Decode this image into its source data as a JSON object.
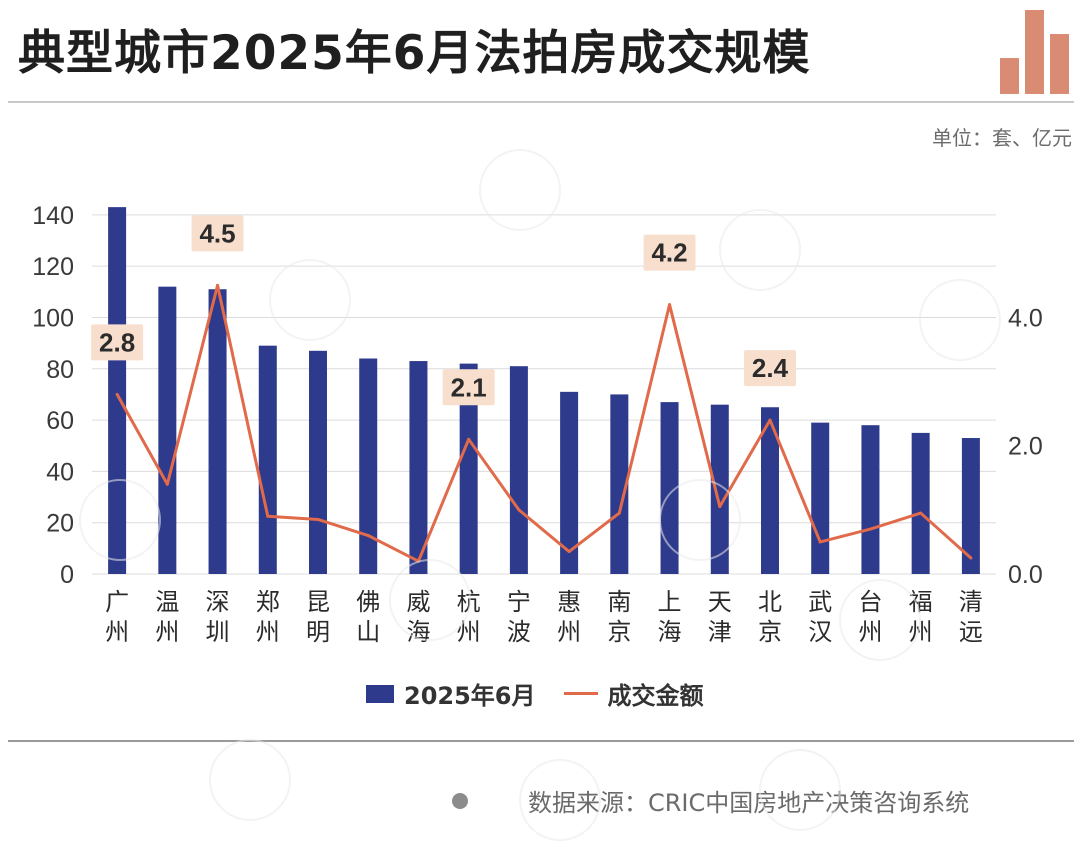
{
  "header": {
    "title": "典型城市2025年6月法拍房成交规模",
    "unit": "单位：套、亿元",
    "logo_icon": "bar-chart-logo-icon"
  },
  "colors": {
    "bar": "#2e3a8c",
    "line": "#e06a4a",
    "label_bg": "#f8dfcd",
    "grid": "#dcdcdc",
    "logo": "#d98b73"
  },
  "chart_data": {
    "type": "bar",
    "title": "典型城市2025年6月法拍房成交规模",
    "categories": [
      "广州",
      "温州",
      "深圳",
      "郑州",
      "昆明",
      "佛山",
      "威海",
      "杭州",
      "宁波",
      "惠州",
      "南京",
      "上海",
      "天津",
      "北京",
      "武汉",
      "台州",
      "福州",
      "清远"
    ],
    "series": [
      {
        "name": "2025年6月",
        "type": "bar",
        "axis": "left",
        "values": [
          143,
          112,
          111,
          89,
          87,
          84,
          83,
          82,
          81,
          71,
          70,
          67,
          66,
          65,
          59,
          58,
          55,
          53
        ]
      },
      {
        "name": "成交金额",
        "type": "line",
        "axis": "right",
        "values": [
          2.8,
          1.4,
          4.5,
          0.9,
          0.85,
          0.6,
          0.2,
          2.1,
          1.0,
          0.35,
          0.95,
          4.2,
          1.05,
          2.4,
          0.5,
          0.7,
          0.95,
          0.25
        ]
      }
    ],
    "labeled_points": [
      {
        "index": 0,
        "text": "2.8"
      },
      {
        "index": 2,
        "text": "4.5"
      },
      {
        "index": 7,
        "text": "2.1"
      },
      {
        "index": 11,
        "text": "4.2"
      },
      {
        "index": 13,
        "text": "2.4"
      }
    ],
    "y_left": {
      "min": 0,
      "max": 145,
      "ticks": [
        "0",
        "20",
        "40",
        "60",
        "80",
        "100",
        "120",
        "140"
      ],
      "tick_values": [
        0,
        20,
        40,
        60,
        80,
        100,
        120,
        140
      ]
    },
    "y_right": {
      "min": 0,
      "max": 5.8,
      "ticks": [
        "0.0",
        "2.0",
        "4.0"
      ],
      "tick_values": [
        0,
        2,
        4
      ]
    },
    "grid": true,
    "legend_position": "bottom"
  },
  "legend": {
    "bar_label": "2025年6月",
    "line_label": "成交金额"
  },
  "footer": {
    "source": "数据来源：CRIC中国房地产决策咨询系统"
  }
}
